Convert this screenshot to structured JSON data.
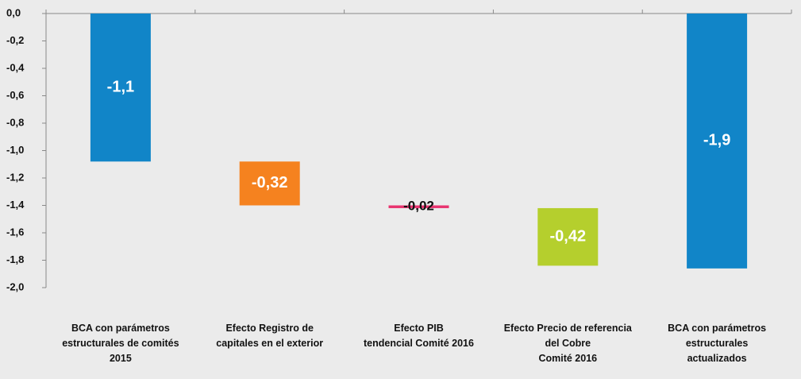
{
  "chart_data": {
    "type": "waterfall",
    "categories": [
      "BCA con parámetros\nestructurales de comités\n2015",
      "Efecto Registro de\ncapitales en el exterior",
      "Efecto PIB\ntendencial Comité 2016",
      "Efecto Precio de referencia\ndel Cobre\nComité 2016",
      "BCA con parámetros\nestructurales\nactualizados"
    ],
    "values": [
      -1.08,
      -0.32,
      -0.02,
      -0.42,
      -1.86
    ],
    "value_labels": [
      "-1,1",
      "-0,32",
      "-0,02",
      "-0,42",
      "-1,9"
    ],
    "total": [
      true,
      false,
      false,
      false,
      true
    ],
    "colors": [
      "#1185c8",
      "#f5821f",
      "#e8336f",
      "#b5cf2d",
      "#1185c8"
    ],
    "ylim": [
      -2.0,
      0.0
    ],
    "yticks": [
      {
        "value": 0.0,
        "label": "0,0"
      },
      {
        "value": -0.2,
        "label": "-0,2"
      },
      {
        "value": -0.4,
        "label": "-0,4"
      },
      {
        "value": -0.6,
        "label": "-0,6"
      },
      {
        "value": -0.8,
        "label": "-0,8"
      },
      {
        "value": -1.0,
        "label": "-1,0"
      },
      {
        "value": -1.2,
        "label": "-1,2"
      },
      {
        "value": -1.4,
        "label": "-1,4"
      },
      {
        "value": -1.6,
        "label": "-1,6"
      },
      {
        "value": -1.8,
        "label": "-1,8"
      },
      {
        "value": -2.0,
        "label": "-2,0"
      }
    ]
  }
}
